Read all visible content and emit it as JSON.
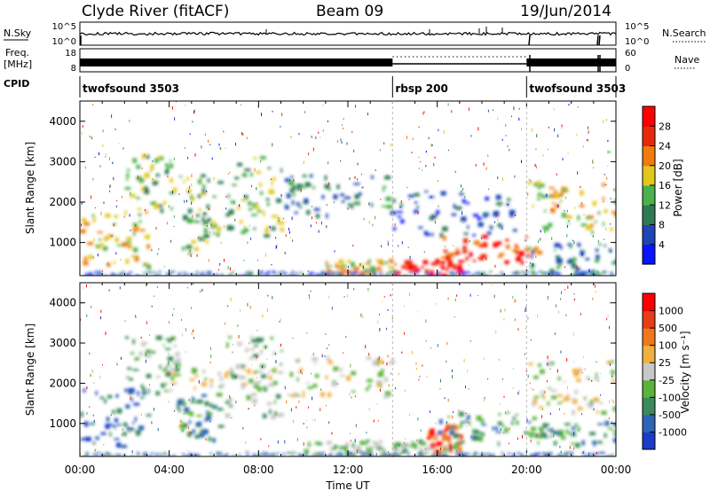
{
  "header": {
    "station": "Clyde River (fitACF)",
    "beam": "Beam 09",
    "date": "19/Jun/2014"
  },
  "status_panels": {
    "nsky_label": "N.Sky",
    "nsearch_label": "N.Search",
    "nsky_ticks": [
      "10^5",
      "10^0"
    ],
    "nsearch_ticks": [
      "10^5",
      "10^0"
    ],
    "freq_label": "Freq.",
    "freq_unit": "[MHz]",
    "freq_ticks": [
      "18",
      "8"
    ],
    "nave_label": "Nave",
    "nave_ticks": [
      "60",
      "0"
    ],
    "cpid_label": "CPID",
    "cpid_segments": [
      {
        "label": "twofsound 3503",
        "start_hour": 0,
        "end_hour": 14
      },
      {
        "label": "rbsp 200",
        "start_hour": 14,
        "end_hour": 20
      },
      {
        "label": "twofsound 3503",
        "start_hour": 20,
        "end_hour": 24
      }
    ]
  },
  "chart_data": [
    {
      "type": "heatmap",
      "name": "power",
      "ylabel": "Slant Range [km]",
      "x_range_hours": [
        0,
        24
      ],
      "ylim": [
        180,
        4500
      ],
      "yticks": [
        "1000",
        "2000",
        "3000",
        "4000"
      ],
      "colorbar": {
        "label": "Power [dB]",
        "ticks": [
          "4",
          "8",
          "12",
          "16",
          "20",
          "24",
          "28"
        ],
        "colors": [
          "#0a14ff",
          "#1e46b4",
          "#2f7a55",
          "#4cb04c",
          "#e2c81c",
          "#f07c10",
          "#e82a0c",
          "#ff0000"
        ]
      },
      "echo_regions": [
        {
          "t0": 0.0,
          "t1": 3.0,
          "r0": 450,
          "r1": 1900,
          "level": 4
        },
        {
          "t0": 2.0,
          "t1": 4.3,
          "r0": 1800,
          "r1": 3200,
          "level": 3
        },
        {
          "t0": 4.3,
          "t1": 6.2,
          "r0": 600,
          "r1": 2700,
          "level": 3
        },
        {
          "t0": 6.5,
          "t1": 9.0,
          "r0": 1200,
          "r1": 3200,
          "level": 3
        },
        {
          "t0": 9.0,
          "t1": 14.0,
          "r0": 1700,
          "r1": 2700,
          "level": 2
        },
        {
          "t0": 11.0,
          "t1": 14.0,
          "r0": 250,
          "r1": 600,
          "level": 4
        },
        {
          "t0": 14.0,
          "t1": 17.0,
          "r0": 220,
          "r1": 600,
          "level": 7
        },
        {
          "t0": 16.0,
          "t1": 20.5,
          "r0": 550,
          "r1": 1200,
          "level": 6
        },
        {
          "t0": 14.0,
          "t1": 19.5,
          "r0": 1200,
          "r1": 2300,
          "level": 1
        },
        {
          "t0": 20.0,
          "t1": 24.0,
          "r0": 1300,
          "r1": 2600,
          "level": 4
        },
        {
          "t0": 20.0,
          "t1": 24.0,
          "r0": 200,
          "r1": 1000,
          "level": 2
        }
      ]
    },
    {
      "type": "heatmap",
      "name": "velocity",
      "ylabel": "Slant Range [km]",
      "xlabel": "Time UT",
      "x_range_hours": [
        0,
        24
      ],
      "ylim": [
        180,
        4500
      ],
      "yticks": [
        "1000",
        "2000",
        "3000",
        "4000"
      ],
      "xticks": [
        "00:00",
        "04:00",
        "08:00",
        "12:00",
        "16:00",
        "20:00",
        "00:00"
      ],
      "colorbar": {
        "label": "Velocity [m s⁻¹]",
        "ticks": [
          "1000",
          "500",
          "100",
          "25",
          "-25",
          "-100",
          "-500",
          "-1000"
        ],
        "colors": [
          "#1a3cc8",
          "#2e64b4",
          "#3a8a5a",
          "#5ab43c",
          "#c8c8c8",
          "#f0b040",
          "#f0781a",
          "#e83c14",
          "#ff0000"
        ]
      },
      "echo_regions": [
        {
          "t0": 0.0,
          "t1": 3.0,
          "r0": 450,
          "r1": 1900,
          "level": 1
        },
        {
          "t0": 2.0,
          "t1": 4.3,
          "r0": 1800,
          "r1": 3200,
          "level": 3
        },
        {
          "t0": 4.0,
          "t1": 9.0,
          "r0": 1900,
          "r1": 2400,
          "level": 4
        },
        {
          "t0": 4.3,
          "t1": 6.2,
          "r0": 600,
          "r1": 1800,
          "level": 2
        },
        {
          "t0": 6.5,
          "t1": 9.0,
          "r0": 1200,
          "r1": 3200,
          "level": 3
        },
        {
          "t0": 9.0,
          "t1": 14.0,
          "r0": 1700,
          "r1": 2700,
          "level": 4
        },
        {
          "t0": 10.0,
          "t1": 14.0,
          "r0": 220,
          "r1": 600,
          "level": 3
        },
        {
          "t0": 14.0,
          "t1": 17.0,
          "r0": 220,
          "r1": 600,
          "level": 3
        },
        {
          "t0": 15.5,
          "t1": 17.0,
          "r0": 300,
          "r1": 1000,
          "level": 7
        },
        {
          "t0": 16.0,
          "t1": 20.5,
          "r0": 550,
          "r1": 1300,
          "level": 2
        },
        {
          "t0": 20.0,
          "t1": 24.0,
          "r0": 1300,
          "r1": 2600,
          "level": 4
        },
        {
          "t0": 20.0,
          "t1": 24.0,
          "r0": 500,
          "r1": 1100,
          "level": 2
        }
      ]
    }
  ]
}
